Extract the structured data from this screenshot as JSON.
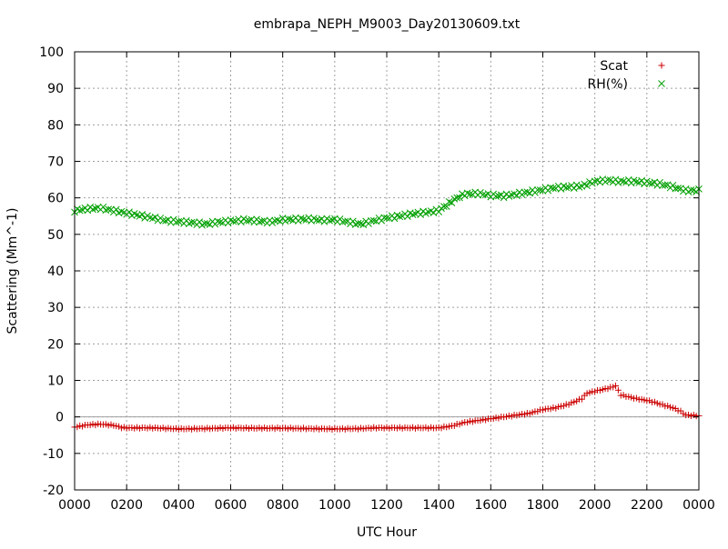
{
  "chart_data": {
    "type": "scatter",
    "title": "embrapa_NEPH_M9003_Day20130609.txt",
    "xlabel": "UTC Hour",
    "ylabel": "Scattering (Mm^-1)",
    "xlim": [
      0,
      24
    ],
    "ylim": [
      -20,
      100
    ],
    "x_ticks": [
      "0000",
      "0200",
      "0400",
      "0600",
      "0800",
      "1000",
      "1200",
      "1400",
      "1600",
      "1800",
      "2000",
      "2200",
      "0000"
    ],
    "y_ticks": [
      "-20",
      "-10",
      "0",
      "10",
      "20",
      "30",
      "40",
      "50",
      "60",
      "70",
      "80",
      "90",
      "100"
    ],
    "grid": true,
    "legend_position": "top-right",
    "series": [
      {
        "name": "Scat",
        "marker": "plus",
        "color": "#cc0000",
        "points": [
          [
            0,
            -2.8
          ],
          [
            0.5,
            -2.2
          ],
          [
            1,
            -2
          ],
          [
            1.5,
            -2.3
          ],
          [
            1.8,
            -2.9
          ],
          [
            2,
            -3
          ],
          [
            3,
            -3
          ],
          [
            4,
            -3.3
          ],
          [
            5,
            -3.2
          ],
          [
            6,
            -3
          ],
          [
            7,
            -3.1
          ],
          [
            8,
            -3.1
          ],
          [
            9,
            -3.2
          ],
          [
            10,
            -3.3
          ],
          [
            11,
            -3.2
          ],
          [
            11.5,
            -3
          ],
          [
            12,
            -3
          ],
          [
            13,
            -3
          ],
          [
            14,
            -3
          ],
          [
            14.5,
            -2.5
          ],
          [
            15,
            -1.5
          ],
          [
            15.5,
            -1
          ],
          [
            16,
            -0.5
          ],
          [
            16.5,
            0
          ],
          [
            17,
            0.5
          ],
          [
            17.5,
            1
          ],
          [
            18,
            2
          ],
          [
            18.5,
            2.5
          ],
          [
            19,
            3.5
          ],
          [
            19.5,
            5
          ],
          [
            19.7,
            6.5
          ],
          [
            20,
            7
          ],
          [
            20.3,
            7.5
          ],
          [
            20.6,
            8
          ],
          [
            20.8,
            8.5
          ],
          [
            21,
            6
          ],
          [
            21.3,
            5.5
          ],
          [
            21.6,
            5
          ],
          [
            22,
            4.5
          ],
          [
            22.3,
            4
          ],
          [
            22.5,
            3.5
          ],
          [
            23,
            2.5
          ],
          [
            23.3,
            1.5
          ],
          [
            23.5,
            0.5
          ],
          [
            24,
            0.3
          ]
        ]
      },
      {
        "name": "RH(%)",
        "marker": "cross",
        "color": "#00a000",
        "points": [
          [
            0,
            56.5
          ],
          [
            0.5,
            57
          ],
          [
            1,
            57.2
          ],
          [
            1.5,
            56.5
          ],
          [
            2,
            55.8
          ],
          [
            2.5,
            55.2
          ],
          [
            3,
            54.5
          ],
          [
            3.5,
            53.8
          ],
          [
            4,
            53.5
          ],
          [
            4.5,
            53.2
          ],
          [
            5,
            52.8
          ],
          [
            5.5,
            53.3
          ],
          [
            6,
            53.6
          ],
          [
            6.5,
            53.9
          ],
          [
            7,
            53.7
          ],
          [
            7.5,
            53.4
          ],
          [
            8,
            54
          ],
          [
            8.5,
            54.1
          ],
          [
            9,
            54.2
          ],
          [
            9.5,
            53.9
          ],
          [
            10,
            54
          ],
          [
            10.5,
            53.4
          ],
          [
            11,
            52.8
          ],
          [
            11.5,
            53.7
          ],
          [
            12,
            54.5
          ],
          [
            12.5,
            55
          ],
          [
            13,
            55.6
          ],
          [
            13.5,
            56
          ],
          [
            14,
            56.5
          ],
          [
            14.3,
            58
          ],
          [
            14.7,
            60
          ],
          [
            15,
            61
          ],
          [
            15.5,
            61.2
          ],
          [
            16,
            60.7
          ],
          [
            16.5,
            60.5
          ],
          [
            17,
            61
          ],
          [
            17.5,
            61.6
          ],
          [
            18,
            62.2
          ],
          [
            18.5,
            62.8
          ],
          [
            19,
            63
          ],
          [
            19.5,
            63.2
          ],
          [
            20,
            64.5
          ],
          [
            20.5,
            64.8
          ],
          [
            21,
            64.5
          ],
          [
            21.5,
            64.5
          ],
          [
            22,
            64.2
          ],
          [
            22.5,
            63.8
          ],
          [
            23,
            63
          ],
          [
            23.5,
            62
          ],
          [
            24,
            62
          ]
        ]
      }
    ]
  }
}
